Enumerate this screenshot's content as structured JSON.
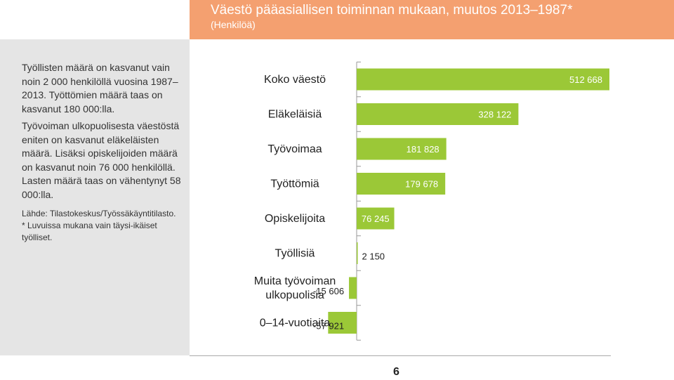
{
  "header": {
    "title": "Väestö pääasiallisen toiminnan mukaan, muutos 2013–1987*",
    "subtitle": "(Henkilöä)"
  },
  "sidebar": {
    "paragraph1": "Työllisten määrä on kasvanut vain noin 2 000 henkilöllä vuosina 1987–2013. Työttömien määrä taas on kasvanut 180 000:lla.",
    "paragraph2": "Työvoiman ulkopuolisesta väestöstä eniten on kasvanut eläkeläisten määrä. Lisäksi opiskelijoiden määrä on kasvanut noin 76 000 henkilöllä. Lasten määrä taas on vähentynyt 58 000:lla.",
    "source": "Lähde: Tilastokeskus/Työssäkäyntitilasto.",
    "note": "* Luvuissa mukana vain täysi-ikäiset työlliset."
  },
  "footer": {
    "page_number": "6"
  },
  "colors": {
    "header_band": "#f4a070",
    "bar": "#9bc837",
    "side_panel": "#e5e5e5"
  },
  "chart_data": {
    "type": "bar",
    "orientation": "horizontal",
    "categories": [
      [
        "Koko väestö"
      ],
      [
        "Eläkeläisiä"
      ],
      [
        "Työvoimaa"
      ],
      [
        "Työttömiä"
      ],
      [
        "Opiskelijoita"
      ],
      [
        "Työllisiä"
      ],
      [
        "Muita työvoiman",
        "ulkopuolisia"
      ],
      [
        "0–14-vuotiaita"
      ]
    ],
    "values": [
      512668,
      328122,
      181828,
      179678,
      76245,
      2150,
      -15606,
      -57921
    ],
    "value_labels": [
      "512 668",
      "328 122",
      "181 828",
      "179 678",
      "76 245",
      "2 150",
      "-15 606",
      "-57 921"
    ],
    "title": "Väestö pääasiallisen toiminnan mukaan, muutos 2013–1987*",
    "xlabel": "",
    "ylabel": "",
    "grid": false
  }
}
